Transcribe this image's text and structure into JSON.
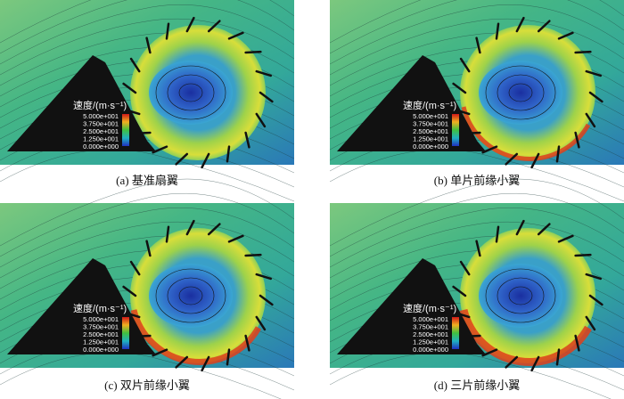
{
  "panels": [
    {
      "caption": "(a) 基准扇翼",
      "legend": {
        "title": "速度/(m·s⁻¹)",
        "labels": [
          "5.000e+001",
          "3.750e+001",
          "2.500e+001",
          "1.250e+001",
          "0.000e+000"
        ]
      }
    },
    {
      "caption": "(b) 单片前缘小翼",
      "legend": {
        "title": "速度/(m·s⁻¹)",
        "labels": [
          "5.000e+001",
          "3.750e+001",
          "2.500e+001",
          "1.250e+001",
          "0.000e+000"
        ]
      }
    },
    {
      "caption": "(c) 双片前缘小翼",
      "legend": {
        "title": "速度/(m·s⁻¹)",
        "labels": [
          "5.000e+001",
          "3.750e+001",
          "2.500e+001",
          "1.250e+001",
          "0.000e+000"
        ]
      }
    },
    {
      "caption": "(d) 三片前缘小翼",
      "legend": {
        "title": "速度/(m·s⁻¹)",
        "labels": [
          "5.000e+001",
          "3.750e+001",
          "2.500e+001",
          "1.250e+001",
          "0.000e+000"
        ]
      }
    }
  ]
}
